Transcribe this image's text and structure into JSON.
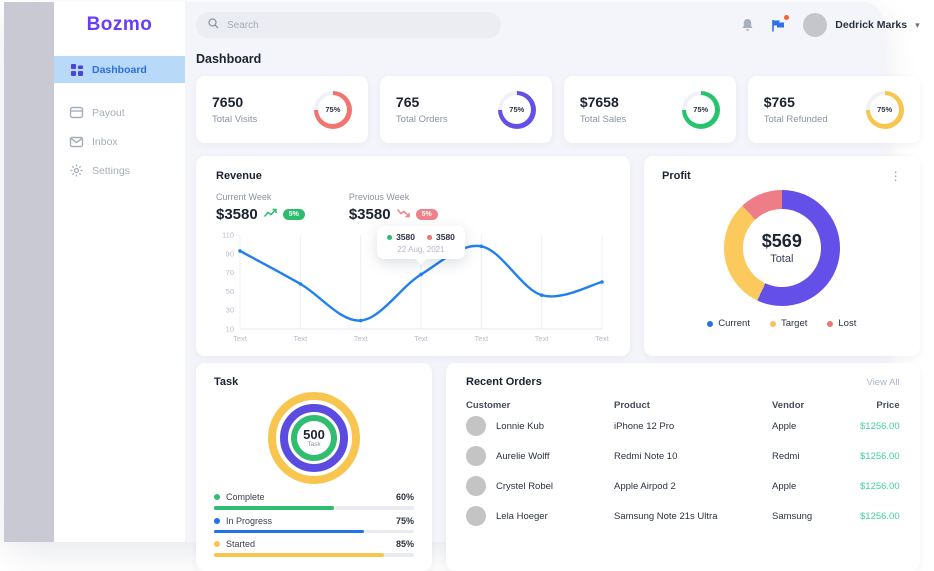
{
  "colors": {
    "brand": "#6a3df2",
    "active_bg": "#b9d9f9",
    "active_text": "#2d6fe0",
    "line_blue": "#2180ed",
    "green": "#2bbd6e",
    "red": "#f2736f",
    "yellow": "#f8c64e",
    "purple": "#6450e8",
    "teal": "#41cfa2"
  },
  "sidebar": {
    "logo": "Bozmo",
    "items": [
      {
        "label": "Dashboard",
        "icon": "dashboard-grid-icon",
        "active": true
      },
      {
        "label": "Payout",
        "icon": "payout-card-icon",
        "active": false
      },
      {
        "label": "Inbox",
        "icon": "inbox-envelope-icon",
        "active": false
      },
      {
        "label": "Settings",
        "icon": "settings-gear-icon",
        "active": false
      }
    ]
  },
  "topbar": {
    "search_placeholder": "Search",
    "user_name": "Dedrick Marks"
  },
  "page_title": "Dashboard",
  "stats": [
    {
      "value": "7650",
      "label": "Total Visits",
      "percent": "75%",
      "color": "#f2736f"
    },
    {
      "value": "765",
      "label": "Total Orders",
      "percent": "75%",
      "color": "#6450e8"
    },
    {
      "value": "$7658",
      "label": "Total Sales",
      "percent": "75%",
      "color": "#27c46d"
    },
    {
      "value": "$765",
      "label": "Total Refunded",
      "percent": "75%",
      "color": "#f8c64e"
    }
  ],
  "revenue": {
    "title": "Revenue",
    "current": {
      "label": "Current Week",
      "value": "$3580",
      "change": "5%"
    },
    "previous": {
      "label": "Previous Week",
      "value": "$3580",
      "change": "5%"
    },
    "tooltip": {
      "current": "3580",
      "current_color": "#2bbd6e",
      "previous": "3580",
      "previous_color": "#f2736f",
      "date": "22 Aug, 2021",
      "point_index": 3
    },
    "chart": {
      "type": "line",
      "x": [
        "Text",
        "Text",
        "Text",
        "Text",
        "Text",
        "Text",
        "Text"
      ],
      "yticks": [
        110,
        90,
        70,
        50,
        30,
        10
      ],
      "ylim": [
        10,
        110
      ],
      "grid": "vertical",
      "series": [
        {
          "name": "Current Week",
          "values": [
            93,
            58,
            19,
            68,
            98,
            46,
            60
          ],
          "color": "#2180ed"
        }
      ]
    }
  },
  "profit": {
    "title": "Profit",
    "total_value": "$569",
    "total_label": "Total",
    "segments": [
      {
        "name": "Current",
        "percent": 57,
        "color": "#6450e8",
        "legend_color": "#1f74e8"
      },
      {
        "name": "Target",
        "percent": 31,
        "color": "#fbc95c",
        "legend_color": "#fbc05a"
      },
      {
        "name": "Lost",
        "percent": 12,
        "color": "#ee7d87",
        "legend_color": "#f2736f"
      }
    ]
  },
  "task": {
    "title": "Task",
    "total_value": "500",
    "total_label": "Task",
    "rings": [
      {
        "color": "#f8c64e"
      },
      {
        "color": "#5b4be0"
      },
      {
        "color": "#2fbe71"
      }
    ],
    "items": [
      {
        "label": "Complete",
        "percent": "60%",
        "color": "#2fbe71"
      },
      {
        "label": "In Progress",
        "percent": "75%",
        "color": "#1f74e8"
      },
      {
        "label": "Started",
        "percent": "85%",
        "color": "#f8c64e"
      }
    ]
  },
  "orders": {
    "title": "Recent Orders",
    "view_all": "View All",
    "columns": [
      "Customer",
      "Product",
      "Vendor",
      "Price"
    ],
    "rows": [
      {
        "customer": "Lonnie Kub",
        "product": "iPhone 12 Pro",
        "vendor": "Apple",
        "price": "$1256.00"
      },
      {
        "customer": "Aurelie Wolff",
        "product": "Redmi Note 10",
        "vendor": "Redmi",
        "price": "$1256.00"
      },
      {
        "customer": "Crystel Robel",
        "product": "Apple Airpod 2",
        "vendor": "Apple",
        "price": "$1256.00"
      },
      {
        "customer": "Lela Hoeger",
        "product": "Samsung Note 21s Ultra",
        "vendor": "Samsung",
        "price": "$1256.00"
      }
    ]
  }
}
